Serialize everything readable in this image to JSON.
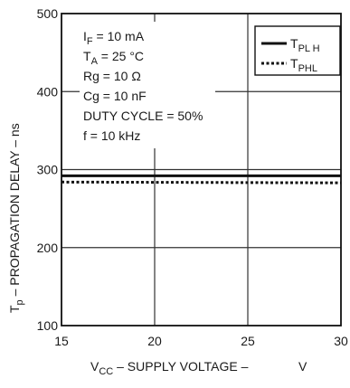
{
  "chart_data": {
    "type": "line",
    "xlabel": "V",
    "xlabel_sub": "CC",
    "xlabel_rest": " – SUPPLY VOLTAGE –",
    "xlabel_unit": "V",
    "ylabel": "T",
    "ylabel_sub": "p",
    "ylabel_rest": " – PROPAGATION DELAY – ns",
    "xlim": [
      15,
      30
    ],
    "ylim": [
      100,
      500
    ],
    "xticks": [
      15,
      20,
      25,
      30
    ],
    "yticks": [
      100,
      200,
      300,
      400,
      500
    ],
    "grid": true,
    "legend_position": "top-right",
    "series": [
      {
        "name_main": "T",
        "name_sub": "PL H",
        "style": "solid",
        "x": [
          15,
          30
        ],
        "y": [
          292,
          292
        ]
      },
      {
        "name_main": "T",
        "name_sub": "PHL",
        "style": "dotted",
        "x": [
          15,
          30
        ],
        "y": [
          284,
          283
        ]
      }
    ],
    "conditions": [
      {
        "main": "I",
        "sub": "F",
        "rest": " = 10 mA"
      },
      {
        "main": "T",
        "sub": "A",
        "rest": " = 25 °C"
      },
      {
        "main": "Rg = 10  Ω",
        "sub": "",
        "rest": ""
      },
      {
        "main": "Cg = 10 nF",
        "sub": "",
        "rest": ""
      },
      {
        "main": "DUTY CYCLE = 50%",
        "sub": "",
        "rest": ""
      },
      {
        "main": "f = 10 kHz",
        "sub": "",
        "rest": ""
      }
    ]
  }
}
